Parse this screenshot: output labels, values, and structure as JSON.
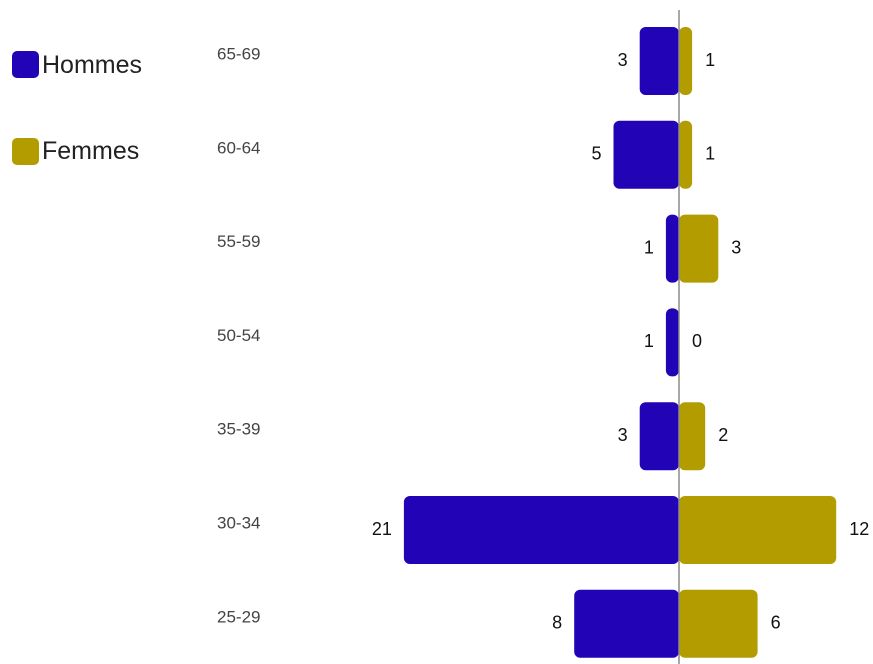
{
  "chart_data": {
    "type": "bar",
    "orientation": "horizontal-population-pyramid",
    "categories": [
      "65-69",
      "60-64",
      "55-59",
      "50-54",
      "35-39",
      "30-34",
      "25-29"
    ],
    "series": [
      {
        "name": "Hommes",
        "values": [
          3,
          5,
          1,
          1,
          3,
          21,
          8
        ],
        "color": "#2203b6"
      },
      {
        "name": "Femmes",
        "values": [
          1,
          1,
          3,
          0,
          2,
          12,
          6
        ],
        "color": "#b39c00"
      }
    ],
    "title": "",
    "xlabel": "",
    "ylabel": "",
    "legend": "top-left",
    "grid": false,
    "axis_color": "#8c8c8c"
  }
}
